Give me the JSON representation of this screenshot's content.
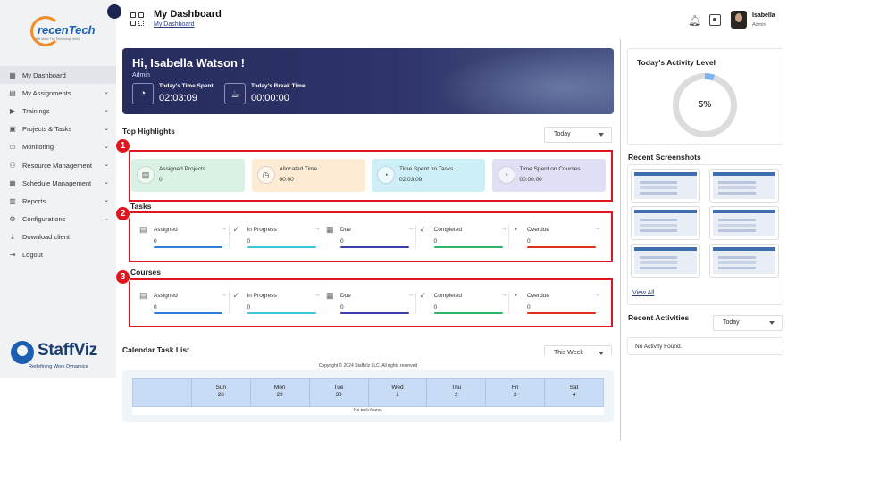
{
  "header": {
    "title": "My Dashboard",
    "breadcrumb": "My Dashboard"
  },
  "user": {
    "name": "Isabella",
    "role": "Admin"
  },
  "brand": {
    "company_logo_text": "recenTech",
    "company_tagline": "We Make The Technology Work",
    "product_logo_text": "StaffViz",
    "product_tagline": "Redefining Work Dynamics",
    "accent": "#2b3166",
    "highlight_red": "#e0161e"
  },
  "sidebar": {
    "items": [
      {
        "label": "My Dashboard",
        "icon": "grid-icon",
        "expandable": false,
        "active": true
      },
      {
        "label": "My Assignments",
        "icon": "clipboard-icon",
        "expandable": true
      },
      {
        "label": "Trainings",
        "icon": "play-icon",
        "expandable": true
      },
      {
        "label": "Projects & Tasks",
        "icon": "folder-icon",
        "expandable": true
      },
      {
        "label": "Monitoring",
        "icon": "monitor-icon",
        "expandable": true
      },
      {
        "label": "Resource Management",
        "icon": "people-icon",
        "expandable": true
      },
      {
        "label": "Schedule Management",
        "icon": "calendar-icon",
        "expandable": true
      },
      {
        "label": "Reports",
        "icon": "report-icon",
        "expandable": true
      },
      {
        "label": "Configurations",
        "icon": "gear-icon",
        "expandable": true
      },
      {
        "label": "Download client",
        "icon": "download-icon",
        "expandable": false
      },
      {
        "label": "Logout",
        "icon": "logout-icon",
        "expandable": false
      }
    ]
  },
  "hero": {
    "greeting": "Hi, Isabella Watson !",
    "role": "Admin",
    "time_spent_label": "Today's Time Spent",
    "time_spent_value": "02:03:09",
    "break_time_label": "Today's Break Time",
    "break_time_value": "00:00:00"
  },
  "highlights": {
    "title": "Top Highlights",
    "period": "Today",
    "cards": [
      {
        "label": "Assigned Projects",
        "value": "0",
        "color": "#d9f2e3"
      },
      {
        "label": "Allocated Time",
        "value": "00:00",
        "color": "#fdebd3"
      },
      {
        "label": "Time Spent on Tasks",
        "value": "02:03:09",
        "color": "#cdeff7"
      },
      {
        "label": "Time Spent on Courses",
        "value": "00:00:00",
        "color": "#dfe0f6"
      }
    ]
  },
  "tasks": {
    "title": "Tasks",
    "metrics": [
      {
        "label": "Assigned",
        "value": "0",
        "color": "#2f7fd8"
      },
      {
        "label": "In Progress",
        "value": "0",
        "color": "#3cc8d6"
      },
      {
        "label": "Due",
        "value": "0",
        "color": "#3b3fae"
      },
      {
        "label": "Completed",
        "value": "0",
        "color": "#2fb36a"
      },
      {
        "label": "Overdue",
        "value": "0",
        "color": "#e0301e"
      }
    ]
  },
  "courses": {
    "title": "Courses",
    "metrics": [
      {
        "label": "Assigned",
        "value": "0",
        "color": "#2f7fd8"
      },
      {
        "label": "In Progress",
        "value": "0",
        "color": "#3cc8d6"
      },
      {
        "label": "Due",
        "value": "0",
        "color": "#3b3fae"
      },
      {
        "label": "Completed",
        "value": "0",
        "color": "#2fb36a"
      },
      {
        "label": "Overdue",
        "value": "0",
        "color": "#e0301e"
      }
    ]
  },
  "annotations": [
    "1",
    "2",
    "3"
  ],
  "calendar": {
    "title": "Calendar Task List",
    "period": "This Week",
    "days": [
      {
        "day": "",
        "date": ""
      },
      {
        "day": "Sun",
        "date": "28"
      },
      {
        "day": "Mon",
        "date": "29"
      },
      {
        "day": "Tue",
        "date": "30"
      },
      {
        "day": "Wed",
        "date": "1"
      },
      {
        "day": "Thu",
        "date": "2"
      },
      {
        "day": "Fri",
        "date": "3"
      },
      {
        "day": "Sat",
        "date": "4"
      }
    ],
    "empty_text": "No task found."
  },
  "footer": {
    "copyright": "Copyright © 2024 StaffViz LLC. All rights reserved"
  },
  "activity": {
    "title": "Today's Activity Level",
    "percent_text": "5%",
    "percent": 5
  },
  "screenshots": {
    "title": "Recent Screenshots",
    "count": 6,
    "view_all": "View All"
  },
  "recent_activities": {
    "title": "Recent Activities",
    "period": "Today",
    "empty_text": "No Activity Found."
  }
}
